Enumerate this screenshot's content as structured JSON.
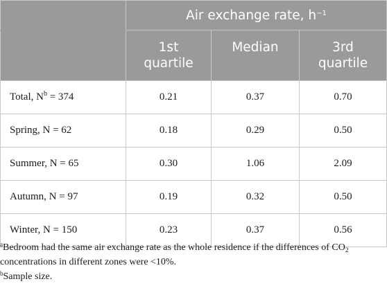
{
  "header": {
    "group_label": "Air exchange rate, h",
    "group_unit_sup": "−1",
    "columns": [
      {
        "line1": "1st",
        "line2": "quartile"
      },
      {
        "line1": "Median",
        "line2": ""
      },
      {
        "line1": "3rd",
        "line2": "quartile"
      }
    ]
  },
  "rows": [
    {
      "label_pre": "Total, N",
      "label_sup": "b",
      "label_post": " = 374",
      "q1": "0.21",
      "median": "0.37",
      "q3": "0.70"
    },
    {
      "label_pre": "Spring, N = 62",
      "label_sup": "",
      "label_post": "",
      "q1": "0.18",
      "median": "0.29",
      "q3": "0.50"
    },
    {
      "label_pre": "Summer, N = 65",
      "label_sup": "",
      "label_post": "",
      "q1": "0.30",
      "median": "1.06",
      "q3": "2.09"
    },
    {
      "label_pre": "Autumn, N = 97",
      "label_sup": "",
      "label_post": "",
      "q1": "0.19",
      "median": "0.32",
      "q3": "0.50"
    },
    {
      "label_pre": "Winter, N = 150",
      "label_sup": "",
      "label_post": "",
      "q1": "0.23",
      "median": "0.37",
      "q3": "0.56"
    }
  ],
  "footnotes": {
    "a_mark": "a",
    "a_text_1": "Bedroom had the same air exchange rate as the whole residence if the differences of CO",
    "a_sub": "2",
    "a_text_2": "concentrations in different zones were <10%.",
    "b_mark": "b",
    "b_text": "Sample size."
  }
}
